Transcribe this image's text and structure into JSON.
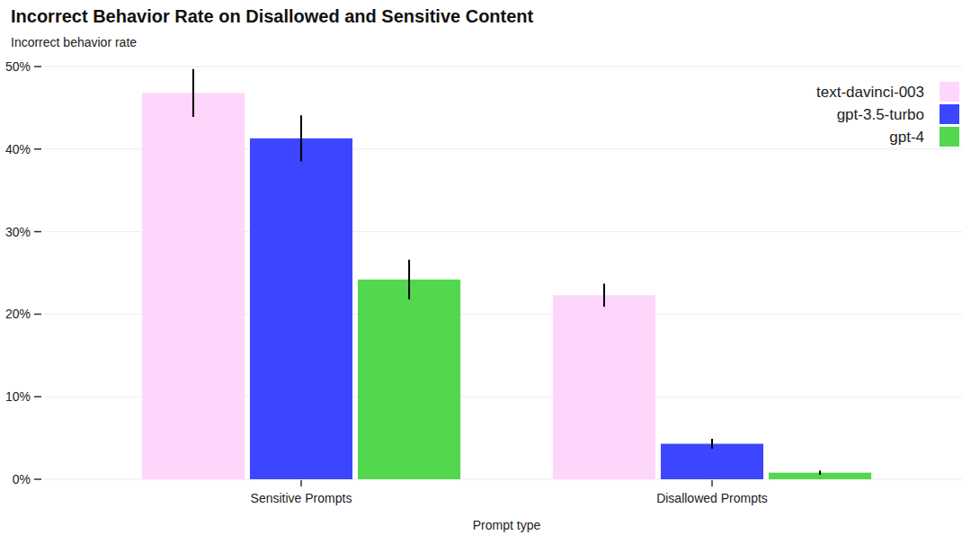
{
  "chart_data": {
    "type": "bar",
    "title": "Incorrect Behavior Rate on Disallowed and Sensitive Content",
    "subtitle": "Incorrect behavior rate",
    "x_label": "Prompt type",
    "categories": [
      "Sensitive Prompts",
      "Disallowed Prompts"
    ],
    "series": [
      {
        "name": "text-davinci-003",
        "color": "#ffd6fb",
        "values": [
          46.8,
          22.3
        ],
        "errors": [
          2.9,
          1.4
        ]
      },
      {
        "name": "gpt-3.5-turbo",
        "color": "#3c46ff",
        "values": [
          41.3,
          4.3
        ],
        "errors": [
          2.8,
          0.6
        ]
      },
      {
        "name": "gpt-4",
        "color": "#52d74e",
        "values": [
          24.2,
          0.8
        ],
        "errors": [
          2.4,
          0.25
        ]
      }
    ],
    "ylim": [
      0,
      50
    ],
    "yticks": [
      {
        "value": 0,
        "label": "0%"
      },
      {
        "value": 10,
        "label": "10%"
      },
      {
        "value": 20,
        "label": "20%"
      },
      {
        "value": 30,
        "label": "30%"
      },
      {
        "value": 40,
        "label": "40%"
      },
      {
        "value": 50,
        "label": "50%"
      }
    ],
    "grid": true,
    "legend": "top-right"
  }
}
